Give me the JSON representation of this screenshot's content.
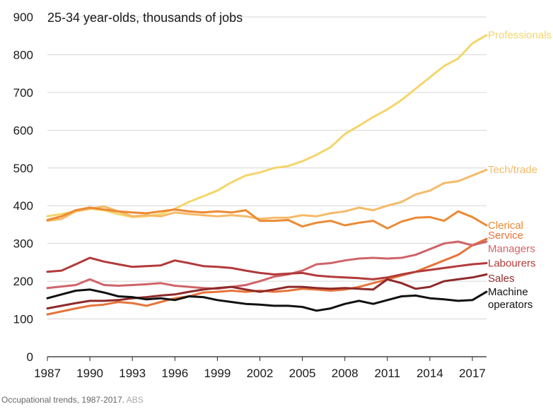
{
  "chart_data": {
    "type": "line",
    "title": "25-34 year-olds, thousands of jobs",
    "ylim": [
      0,
      900
    ],
    "yticks": [
      0,
      100,
      200,
      300,
      400,
      500,
      600,
      700,
      800,
      900
    ],
    "xlim": [
      1987,
      2018
    ],
    "xticks": [
      1987,
      1990,
      1993,
      1996,
      1999,
      2002,
      2005,
      2008,
      2011,
      2014,
      2017
    ],
    "xlabel": "",
    "ylabel": "",
    "grid": "horizontal",
    "series": [
      {
        "name": "Professionals",
        "color": "#f5d56a",
        "points": [
          [
            1987,
            372
          ],
          [
            1988,
            378
          ],
          [
            1989,
            385
          ],
          [
            1990,
            392
          ],
          [
            1991,
            388
          ],
          [
            1992,
            378
          ],
          [
            1993,
            370
          ],
          [
            1994,
            372
          ],
          [
            1995,
            378
          ],
          [
            1996,
            392
          ],
          [
            1997,
            410
          ],
          [
            1998,
            425
          ],
          [
            1999,
            440
          ],
          [
            2000,
            462
          ],
          [
            2001,
            480
          ],
          [
            2002,
            488
          ],
          [
            2003,
            500
          ],
          [
            2004,
            505
          ],
          [
            2005,
            518
          ],
          [
            2006,
            535
          ],
          [
            2007,
            555
          ],
          [
            2008,
            590
          ],
          [
            2009,
            612
          ],
          [
            2010,
            635
          ],
          [
            2011,
            655
          ],
          [
            2012,
            680
          ],
          [
            2013,
            710
          ],
          [
            2014,
            740
          ],
          [
            2015,
            770
          ],
          [
            2016,
            790
          ],
          [
            2017,
            830
          ],
          [
            2018,
            852
          ]
        ]
      },
      {
        "name": "Tech/trade",
        "color": "#f5ba68",
        "points": [
          [
            1987,
            360
          ],
          [
            1988,
            365
          ],
          [
            1989,
            385
          ],
          [
            1990,
            392
          ],
          [
            1991,
            398
          ],
          [
            1992,
            385
          ],
          [
            1993,
            372
          ],
          [
            1994,
            375
          ],
          [
            1995,
            372
          ],
          [
            1996,
            382
          ],
          [
            1997,
            378
          ],
          [
            1998,
            375
          ],
          [
            1999,
            372
          ],
          [
            2000,
            375
          ],
          [
            2001,
            372
          ],
          [
            2002,
            365
          ],
          [
            2003,
            368
          ],
          [
            2004,
            368
          ],
          [
            2005,
            375
          ],
          [
            2006,
            372
          ],
          [
            2007,
            380
          ],
          [
            2008,
            385
          ],
          [
            2009,
            395
          ],
          [
            2010,
            388
          ],
          [
            2011,
            400
          ],
          [
            2012,
            410
          ],
          [
            2013,
            430
          ],
          [
            2014,
            440
          ],
          [
            2015,
            460
          ],
          [
            2016,
            465
          ],
          [
            2017,
            480
          ],
          [
            2018,
            495
          ]
        ]
      },
      {
        "name": "Clerical",
        "color": "#ec8a34",
        "points": [
          [
            1987,
            362
          ],
          [
            1988,
            372
          ],
          [
            1989,
            388
          ],
          [
            1990,
            395
          ],
          [
            1991,
            390
          ],
          [
            1992,
            385
          ],
          [
            1993,
            382
          ],
          [
            1994,
            380
          ],
          [
            1995,
            385
          ],
          [
            1996,
            390
          ],
          [
            1997,
            385
          ],
          [
            1998,
            382
          ],
          [
            1999,
            385
          ],
          [
            2000,
            382
          ],
          [
            2001,
            388
          ],
          [
            2002,
            360
          ],
          [
            2003,
            360
          ],
          [
            2004,
            362
          ],
          [
            2005,
            345
          ],
          [
            2006,
            355
          ],
          [
            2007,
            360
          ],
          [
            2008,
            348
          ],
          [
            2009,
            355
          ],
          [
            2010,
            360
          ],
          [
            2011,
            340
          ],
          [
            2012,
            358
          ],
          [
            2013,
            368
          ],
          [
            2014,
            370
          ],
          [
            2015,
            360
          ],
          [
            2016,
            385
          ],
          [
            2017,
            370
          ],
          [
            2018,
            348
          ]
        ]
      },
      {
        "name": "Service",
        "color": "#e6743a",
        "points": [
          [
            1987,
            112
          ],
          [
            1988,
            120
          ],
          [
            1989,
            128
          ],
          [
            1990,
            135
          ],
          [
            1991,
            138
          ],
          [
            1992,
            145
          ],
          [
            1993,
            142
          ],
          [
            1994,
            135
          ],
          [
            1995,
            145
          ],
          [
            1996,
            155
          ],
          [
            1997,
            160
          ],
          [
            1998,
            170
          ],
          [
            1999,
            172
          ],
          [
            2000,
            175
          ],
          [
            2001,
            172
          ],
          [
            2002,
            175
          ],
          [
            2003,
            172
          ],
          [
            2004,
            175
          ],
          [
            2005,
            180
          ],
          [
            2006,
            178
          ],
          [
            2007,
            175
          ],
          [
            2008,
            178
          ],
          [
            2009,
            185
          ],
          [
            2010,
            195
          ],
          [
            2011,
            205
          ],
          [
            2012,
            215
          ],
          [
            2013,
            225
          ],
          [
            2014,
            240
          ],
          [
            2015,
            255
          ],
          [
            2016,
            270
          ],
          [
            2017,
            295
          ],
          [
            2018,
            312
          ]
        ]
      },
      {
        "name": "Managers",
        "color": "#cf6469",
        "points": [
          [
            1987,
            182
          ],
          [
            1988,
            186
          ],
          [
            1989,
            190
          ],
          [
            1990,
            205
          ],
          [
            1991,
            190
          ],
          [
            1992,
            188
          ],
          [
            1993,
            190
          ],
          [
            1994,
            192
          ],
          [
            1995,
            195
          ],
          [
            1996,
            188
          ],
          [
            1997,
            185
          ],
          [
            1998,
            182
          ],
          [
            1999,
            180
          ],
          [
            2000,
            185
          ],
          [
            2001,
            190
          ],
          [
            2002,
            200
          ],
          [
            2003,
            212
          ],
          [
            2004,
            218
          ],
          [
            2005,
            228
          ],
          [
            2006,
            245
          ],
          [
            2007,
            248
          ],
          [
            2008,
            255
          ],
          [
            2009,
            260
          ],
          [
            2010,
            262
          ],
          [
            2011,
            260
          ],
          [
            2012,
            262
          ],
          [
            2013,
            270
          ],
          [
            2014,
            285
          ],
          [
            2015,
            300
          ],
          [
            2016,
            305
          ],
          [
            2017,
            295
          ],
          [
            2018,
            305
          ]
        ]
      },
      {
        "name": "Labourers",
        "color": "#b23a3a",
        "points": [
          [
            1987,
            225
          ],
          [
            1988,
            228
          ],
          [
            1989,
            245
          ],
          [
            1990,
            262
          ],
          [
            1991,
            252
          ],
          [
            1992,
            245
          ],
          [
            1993,
            238
          ],
          [
            1994,
            240
          ],
          [
            1995,
            242
          ],
          [
            1996,
            255
          ],
          [
            1997,
            248
          ],
          [
            1998,
            240
          ],
          [
            1999,
            238
          ],
          [
            2000,
            235
          ],
          [
            2001,
            228
          ],
          [
            2002,
            222
          ],
          [
            2003,
            218
          ],
          [
            2004,
            220
          ],
          [
            2005,
            222
          ],
          [
            2006,
            215
          ],
          [
            2007,
            212
          ],
          [
            2008,
            210
          ],
          [
            2009,
            208
          ],
          [
            2010,
            205
          ],
          [
            2011,
            210
          ],
          [
            2012,
            218
          ],
          [
            2013,
            225
          ],
          [
            2014,
            230
          ],
          [
            2015,
            235
          ],
          [
            2016,
            240
          ],
          [
            2017,
            245
          ],
          [
            2018,
            248
          ]
        ]
      },
      {
        "name": "Sales",
        "color": "#8e2a2a",
        "points": [
          [
            1987,
            128
          ],
          [
            1988,
            135
          ],
          [
            1989,
            142
          ],
          [
            1990,
            148
          ],
          [
            1991,
            148
          ],
          [
            1992,
            150
          ],
          [
            1993,
            155
          ],
          [
            1994,
            158
          ],
          [
            1995,
            162
          ],
          [
            1996,
            165
          ],
          [
            1997,
            172
          ],
          [
            1998,
            178
          ],
          [
            1999,
            182
          ],
          [
            2000,
            185
          ],
          [
            2001,
            178
          ],
          [
            2002,
            172
          ],
          [
            2003,
            178
          ],
          [
            2004,
            185
          ],
          [
            2005,
            185
          ],
          [
            2006,
            182
          ],
          [
            2007,
            180
          ],
          [
            2008,
            182
          ],
          [
            2009,
            180
          ],
          [
            2010,
            178
          ],
          [
            2011,
            205
          ],
          [
            2012,
            195
          ],
          [
            2013,
            180
          ],
          [
            2014,
            185
          ],
          [
            2015,
            200
          ],
          [
            2016,
            205
          ],
          [
            2017,
            210
          ],
          [
            2018,
            218
          ]
        ]
      },
      {
        "name": "Machine operators",
        "label_lines": [
          "Machine",
          "operators"
        ],
        "color": "#111111",
        "points": [
          [
            1987,
            155
          ],
          [
            1988,
            165
          ],
          [
            1989,
            175
          ],
          [
            1990,
            178
          ],
          [
            1991,
            170
          ],
          [
            1992,
            160
          ],
          [
            1993,
            158
          ],
          [
            1994,
            152
          ],
          [
            1995,
            155
          ],
          [
            1996,
            150
          ],
          [
            1997,
            160
          ],
          [
            1998,
            158
          ],
          [
            1999,
            150
          ],
          [
            2000,
            145
          ],
          [
            2001,
            140
          ],
          [
            2002,
            138
          ],
          [
            2003,
            135
          ],
          [
            2004,
            135
          ],
          [
            2005,
            132
          ],
          [
            2006,
            122
          ],
          [
            2007,
            128
          ],
          [
            2008,
            140
          ],
          [
            2009,
            148
          ],
          [
            2010,
            140
          ],
          [
            2011,
            150
          ],
          [
            2012,
            160
          ],
          [
            2013,
            162
          ],
          [
            2014,
            155
          ],
          [
            2015,
            152
          ],
          [
            2016,
            148
          ],
          [
            2017,
            150
          ],
          [
            2018,
            172
          ]
        ]
      }
    ]
  },
  "caption": {
    "text": "Occupational trends, 1987-2017.",
    "source": "ABS"
  }
}
